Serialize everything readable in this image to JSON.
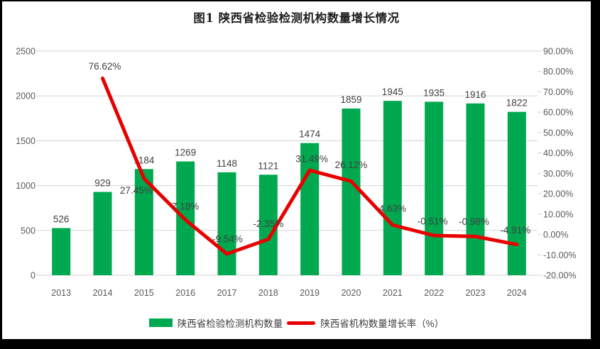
{
  "frame": {
    "border_color": "#000000",
    "background_color": "#ffffff"
  },
  "chart_data": {
    "type": "combo-bar-line",
    "title": "图1 陕西省检验检测机构数量增长情况",
    "categories": [
      "2013",
      "2014",
      "2015",
      "2016",
      "2017",
      "2018",
      "2019",
      "2020",
      "2021",
      "2022",
      "2023",
      "2024"
    ],
    "series": [
      {
        "name": "陕西省检验检测机构数量",
        "chart_type": "bar",
        "axis": "left",
        "color": "#00a94f",
        "values": [
          526,
          929,
          1184,
          1269,
          1148,
          1121,
          1474,
          1859,
          1945,
          1935,
          1916,
          1822
        ],
        "value_labels": [
          "526",
          "929",
          "1184",
          "1269",
          "1148",
          "1121",
          "1474",
          "1859",
          "1945",
          "1935",
          "1916",
          "1822"
        ]
      },
      {
        "name": "陕西省机构数量增长率（%）",
        "chart_type": "line",
        "axis": "right",
        "color": "#e80000",
        "values": [
          null,
          76.62,
          27.45,
          7.18,
          -9.54,
          -2.35,
          31.49,
          26.12,
          4.63,
          -0.51,
          -0.98,
          -4.91
        ],
        "value_labels": [
          null,
          "76.62%",
          "27.45%",
          "7.18%",
          "-9.54%",
          "-2.35%",
          "31.49%",
          "26.12%",
          "4.63%",
          "-0.51%",
          "-0.98%",
          "-4.91%"
        ]
      }
    ],
    "left_axis": {
      "min": 0,
      "max": 2500,
      "step": 500,
      "tick_labels": [
        "0",
        "500",
        "1000",
        "1500",
        "2000",
        "2500"
      ]
    },
    "right_axis": {
      "min": -20,
      "max": 90,
      "step": 10,
      "tick_labels": [
        "-20.00%",
        "-10.00%",
        "0.00%",
        "10.00%",
        "20.00%",
        "30.00%",
        "40.00%",
        "50.00%",
        "60.00%",
        "70.00%",
        "80.00%",
        "90.00%"
      ]
    },
    "grid": true,
    "legend_position": "bottom",
    "colors": {
      "bar": "#00a94f",
      "line": "#e80000",
      "gridline": "#dadada",
      "tick_text": "#595959",
      "data_label_text": "#404040",
      "title_text": "#1f1f1f"
    }
  },
  "legend": {
    "items": [
      {
        "label": "陕西省检验检测机构数量",
        "swatch": "bar",
        "color": "#00a94f"
      },
      {
        "label": "陕西省机构数量增长率（%）",
        "swatch": "line",
        "color": "#e80000"
      }
    ]
  }
}
